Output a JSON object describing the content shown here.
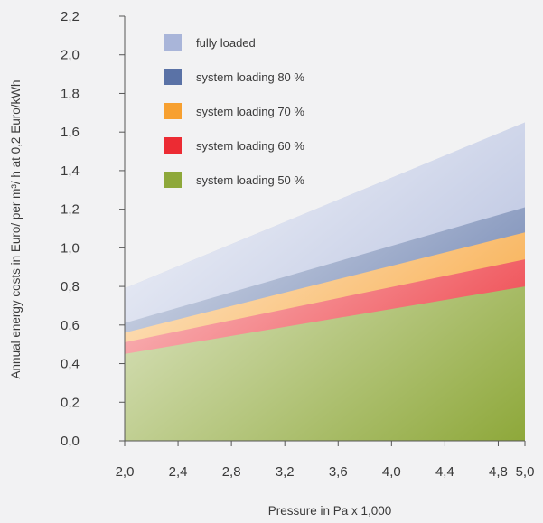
{
  "chart_data": {
    "type": "area",
    "title": "",
    "xlabel": "Pressure in Pa x 1,000",
    "ylabel": "Annual energy costs in Euro/ per m³/ h at 0,2 Euro/kWh",
    "xlim": [
      2.0,
      5.0
    ],
    "ylim": [
      0.0,
      2.2
    ],
    "x_ticks": [
      "2,0",
      "2,4",
      "2,8",
      "3,2",
      "3,6",
      "4,0",
      "4,4",
      "4,8",
      "5,0"
    ],
    "x_tick_values": [
      2.0,
      2.4,
      2.8,
      3.2,
      3.6,
      4.0,
      4.4,
      4.8,
      5.0
    ],
    "y_ticks": [
      "0,0",
      "0,2",
      "0,4",
      "0,6",
      "0,8",
      "1,0",
      "1,2",
      "1,4",
      "1,6",
      "1,8",
      "2,0",
      "2,2"
    ],
    "y_tick_values": [
      0.0,
      0.2,
      0.4,
      0.6,
      0.8,
      1.0,
      1.2,
      1.4,
      1.6,
      1.8,
      2.0,
      2.2
    ],
    "grid": false,
    "legend_position": "top-left",
    "x": [
      2.0,
      5.0
    ],
    "series": [
      {
        "name": "fully loaded",
        "values": [
          0.79,
          1.65
        ],
        "color": "#a9b5d9"
      },
      {
        "name": "system loading 80 %",
        "values": [
          0.61,
          1.21
        ],
        "color": "#5a72a6"
      },
      {
        "name": "system loading 70 %",
        "values": [
          0.56,
          1.08
        ],
        "color": "#f7a030"
      },
      {
        "name": "system loading 60 %",
        "values": [
          0.51,
          0.94
        ],
        "color": "#ec2b33"
      },
      {
        "name": "system loading 50 %",
        "values": [
          0.45,
          0.8
        ],
        "color": "#8ea83a"
      }
    ]
  }
}
